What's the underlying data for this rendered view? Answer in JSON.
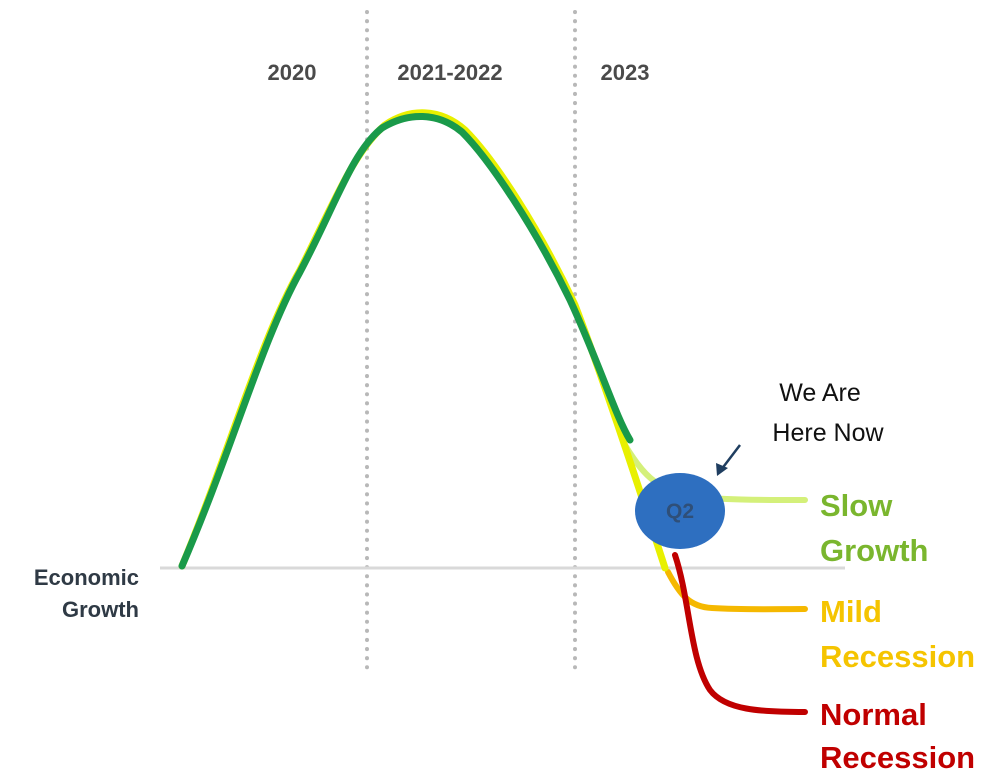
{
  "periods": [
    "2020",
    "2021-2022",
    "2023"
  ],
  "axis_label": [
    "Economic",
    "Growth"
  ],
  "callout": {
    "lines": [
      "We Are",
      "Here Now"
    ]
  },
  "marker_label": "Q2",
  "scenarios": [
    {
      "lines": [
        "Slow",
        "Growth"
      ],
      "color": "#7ab62e"
    },
    {
      "lines": [
        "Mild",
        "Recession"
      ],
      "color": "#f5c400"
    },
    {
      "lines": [
        "Normal",
        "Recession"
      ],
      "color": "#c00000"
    }
  ],
  "colors": {
    "main_curve": "#1a9a4a",
    "main_curve_highlight": "#e8f000",
    "slow_growth_line": "#d4f07a",
    "mild_recession_line": "#f5b800",
    "normal_recession_line": "#c00000",
    "marker": "#2e6fc0",
    "baseline": "#d9d9d9",
    "divider": "#b8b8b8",
    "arrow": "#1f3e60"
  }
}
